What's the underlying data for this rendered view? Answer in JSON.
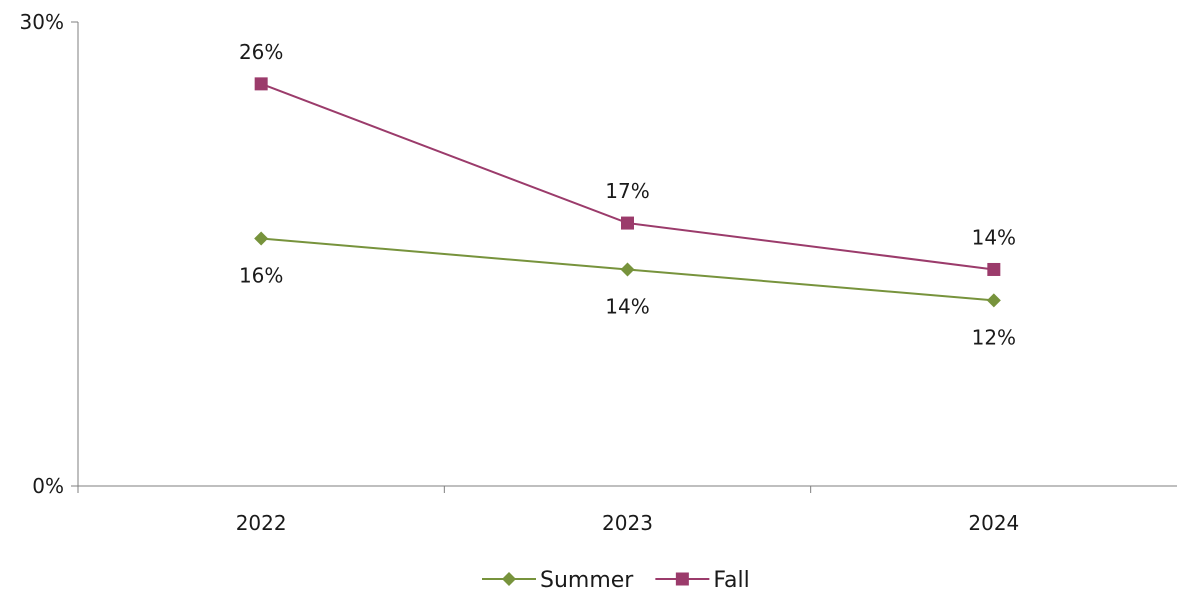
{
  "chart_data": {
    "type": "line",
    "categories": [
      "2022",
      "2023",
      "2024"
    ],
    "series": [
      {
        "name": "Summer",
        "values": [
          16,
          14,
          12
        ],
        "color": "#77933c",
        "marker": "diamond",
        "labels": [
          "16%",
          "14%",
          "12%"
        ],
        "label_position": "below"
      },
      {
        "name": "Fall",
        "values": [
          26,
          17,
          14
        ],
        "color": "#9b3b6b",
        "marker": "square",
        "labels": [
          "26%",
          "17%",
          "14%"
        ],
        "label_position": "above"
      }
    ],
    "y_tick_labels": [
      "0%",
      "30%"
    ],
    "y_ticks": [
      0,
      30
    ],
    "ylim": [
      0,
      30
    ],
    "title": "",
    "xlabel": "",
    "ylabel": "",
    "grid": false,
    "legend": "bottom-center",
    "axis_color": "#7f7f7f"
  }
}
